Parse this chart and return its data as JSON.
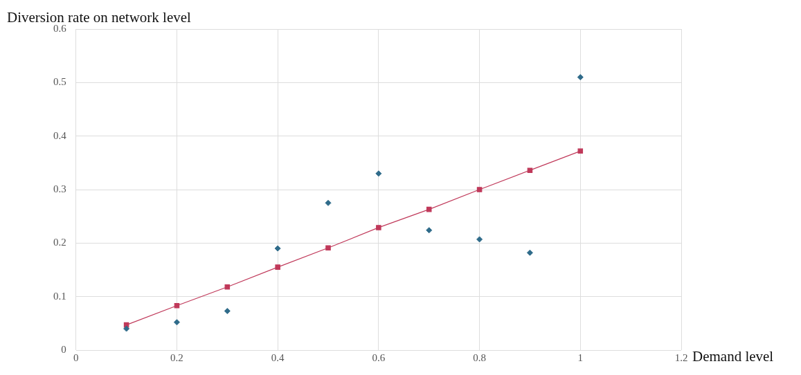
{
  "chart_data": {
    "type": "scatter",
    "xlabel": "Demand level",
    "ylabel": "Diversion rate on network level",
    "xlim": [
      0,
      1.2
    ],
    "xticks": [
      0,
      0.2,
      0.4,
      0.6,
      0.8,
      1,
      1.2
    ],
    "ylim": [
      0,
      0.6
    ],
    "yticks": [
      0,
      0.1,
      0.2,
      0.3,
      0.4,
      0.5,
      0.6
    ],
    "grid": true,
    "legend": false,
    "series": [
      {
        "type": "scatter",
        "marker": "diamond",
        "color": "#2f6b8a",
        "x": [
          0.1,
          0.2,
          0.3,
          0.4,
          0.5,
          0.6,
          0.7,
          0.8,
          0.9,
          1
        ],
        "values": [
          0.04,
          0.052,
          0.073,
          0.19,
          0.275,
          0.33,
          0.224,
          0.207,
          0.182,
          0.51
        ]
      },
      {
        "type": "line",
        "marker": "square",
        "line_style": "solid",
        "color": "#c0395a",
        "x": [
          0.1,
          0.2,
          0.3,
          0.4,
          0.5,
          0.6,
          0.7,
          0.8,
          0.9,
          1
        ],
        "values": [
          0.047,
          0.083,
          0.118,
          0.155,
          0.191,
          0.229,
          0.263,
          0.3,
          0.336,
          0.372
        ]
      }
    ]
  }
}
